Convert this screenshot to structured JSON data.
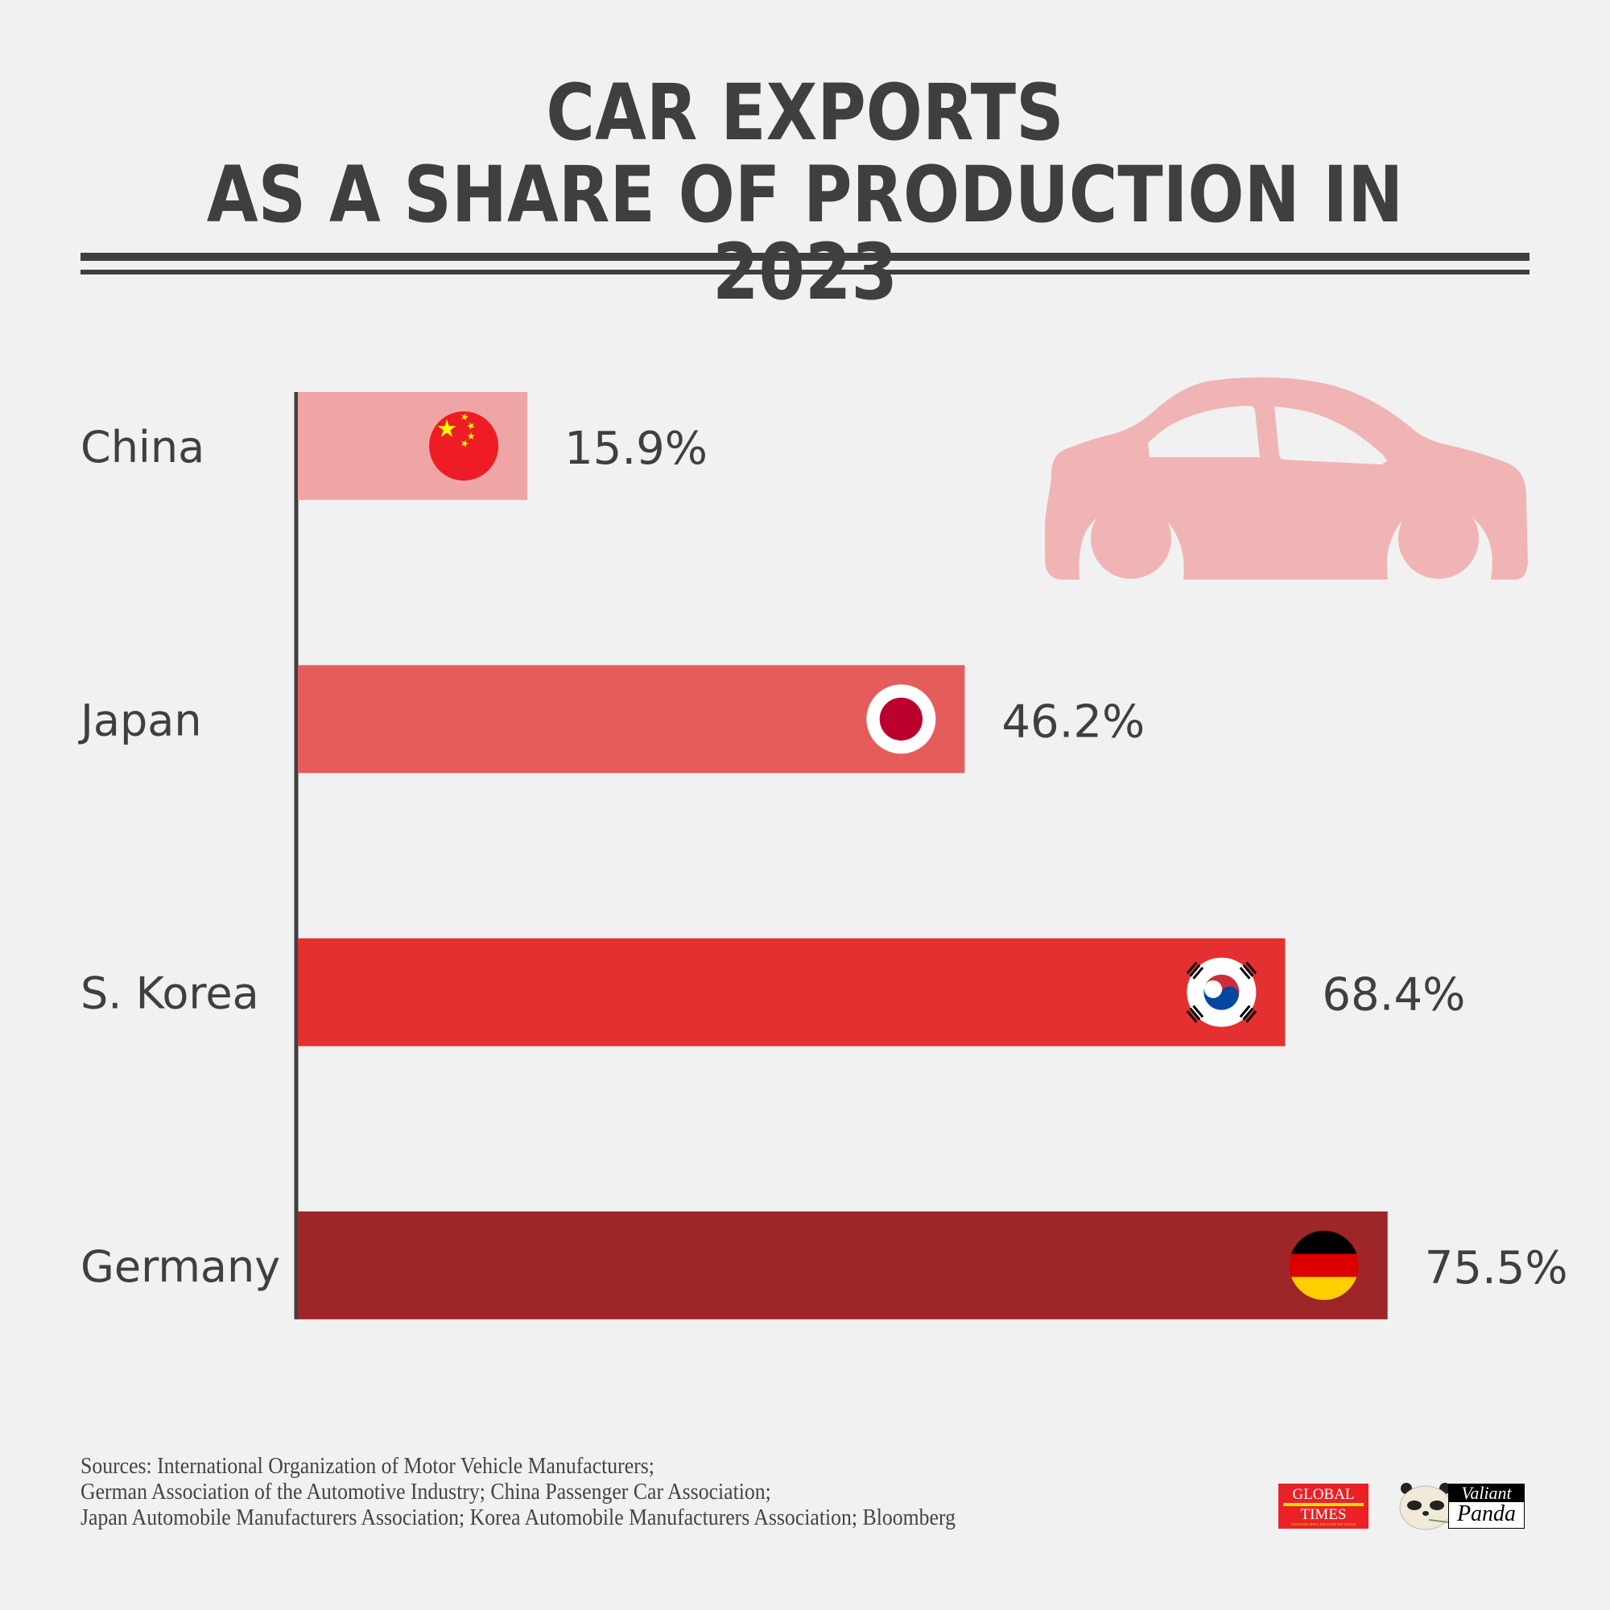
{
  "title": {
    "line1": "CAR EXPORTS",
    "line2": "AS A SHARE OF PRODUCTION IN 2023"
  },
  "colors": {
    "background": "#f1f1f1",
    "text": "#3f3f3f",
    "car_icon": "#f0b4b5"
  },
  "chart_data": {
    "type": "bar",
    "orientation": "horizontal",
    "title": "CAR EXPORTS AS A SHARE OF PRODUCTION IN 2023",
    "xlabel": "",
    "ylabel": "",
    "unit": "%",
    "categories": [
      "China",
      "Japan",
      "S. Korea",
      "Germany"
    ],
    "values": [
      15.9,
      46.2,
      68.4,
      75.5
    ],
    "value_labels": [
      "15.9%",
      "46.2%",
      "68.4%",
      "75.5%"
    ],
    "bar_colors": [
      "#efa5a6",
      "#e55d5b",
      "#e43030",
      "#9e2628"
    ],
    "flags": [
      "china-flag",
      "japan-flag",
      "south-korea-flag",
      "germany-flag"
    ],
    "xlim": [
      0,
      100
    ],
    "grid": false,
    "legend": "none"
  },
  "decoration": {
    "icon": "car-icon"
  },
  "sources": {
    "lines": [
      "Sources: International Organization of Motor Vehicle Manufacturers;",
      "German Association of the Automotive Industry; China Passenger Car Association;",
      "Japan Automobile Manufacturers Association; Korea Automobile Manufacturers Association; Bloomberg"
    ]
  },
  "logos": {
    "global_times": {
      "line1": "GLOBAL",
      "line2": "TIMES",
      "mid": "环球时报",
      "tagline": "DISCOVER CHINA, DISCOVER THE WORLD"
    },
    "valiant_panda": {
      "line1": "Valiant",
      "line2": "Panda"
    }
  }
}
